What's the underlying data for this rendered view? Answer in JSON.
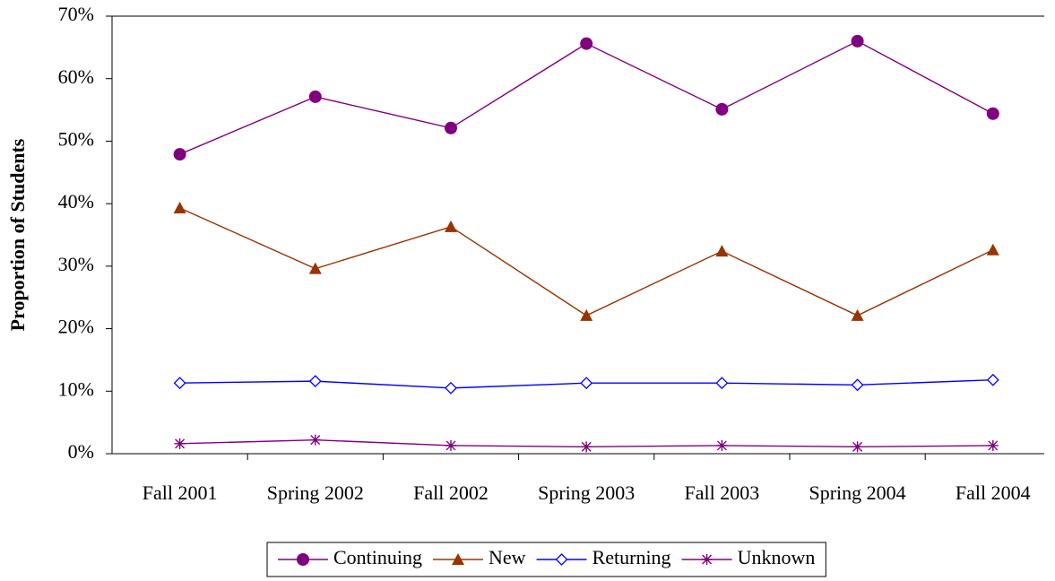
{
  "chart_data": {
    "type": "line",
    "y_axis_label": "Proportion of Students",
    "categories": [
      "Fall 2001",
      "Spring 2002",
      "Fall 2002",
      "Spring 2003",
      "Fall 2003",
      "Spring 2004",
      "Fall 2004"
    ],
    "series": [
      {
        "name": "Continuing",
        "color": "#800080",
        "marker": "circle",
        "values": [
          47.9,
          57.1,
          52.1,
          65.6,
          55.1,
          66.0,
          54.4
        ]
      },
      {
        "name": "New",
        "color": "#993300",
        "marker": "triangle",
        "values": [
          39.3,
          29.6,
          36.3,
          22.1,
          32.4,
          22.1,
          32.6
        ]
      },
      {
        "name": "Returning",
        "color": "#0000ff",
        "marker": "diamond",
        "values": [
          11.3,
          11.6,
          10.5,
          11.3,
          11.3,
          11.0,
          11.8
        ]
      },
      {
        "name": "Unknown",
        "color": "#800080",
        "marker": "asterisk",
        "values": [
          1.6,
          2.2,
          1.3,
          1.1,
          1.3,
          1.1,
          1.3
        ]
      }
    ],
    "ylim": [
      0,
      70
    ],
    "yticks": [
      {
        "value": 0,
        "label": "0%"
      },
      {
        "value": 10,
        "label": "10%"
      },
      {
        "value": 20,
        "label": "20%"
      },
      {
        "value": 30,
        "label": "30%"
      },
      {
        "value": 40,
        "label": "40%"
      },
      {
        "value": 50,
        "label": "50%"
      },
      {
        "value": 60,
        "label": "60%"
      },
      {
        "value": 70,
        "label": "70%"
      }
    ],
    "legend": "bottom"
  }
}
